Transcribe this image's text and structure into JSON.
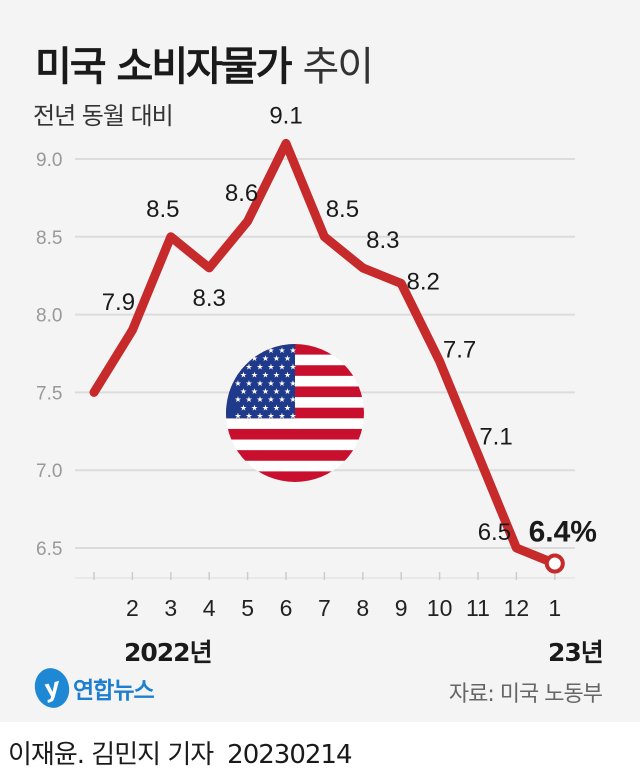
{
  "title": {
    "bold": "미국 소비자물가",
    "light": "추이"
  },
  "subtitle": "전년 동월 대비",
  "chart_data": {
    "type": "line",
    "title": "미국 소비자물가 추이",
    "ylabel": "전년 동월 대비",
    "x": [
      "1",
      "2",
      "3",
      "4",
      "5",
      "6",
      "7",
      "8",
      "9",
      "10",
      "11",
      "12",
      "1"
    ],
    "x_tick_labels": [
      "",
      "2",
      "3",
      "4",
      "5",
      "6",
      "7",
      "8",
      "9",
      "10",
      "11",
      "12",
      "1"
    ],
    "values": [
      7.5,
      7.9,
      8.5,
      8.3,
      8.6,
      9.1,
      8.5,
      8.3,
      8.2,
      7.7,
      7.1,
      6.5,
      6.4
    ],
    "data_labels": [
      "",
      "7.9",
      "8.5",
      "8.3",
      "8.6",
      "9.1",
      "8.5",
      "8.3",
      "8.2",
      "7.7",
      "7.1",
      "6.5",
      "6.4%"
    ],
    "yticks": [
      "6.5",
      "7.0",
      "7.5",
      "8.0",
      "8.5",
      "9.0"
    ],
    "ylim": [
      6.5,
      9.0
    ],
    "grid": true,
    "series_color": "#c62a2a"
  },
  "x_groups": {
    "year1": "2022년",
    "year2": "23년"
  },
  "logo": {
    "mark": "y",
    "text": "연합뉴스"
  },
  "source": "자료: 미국 노동부",
  "credit": {
    "names": "이재윤. 김민지 기자",
    "date": "20230214"
  }
}
